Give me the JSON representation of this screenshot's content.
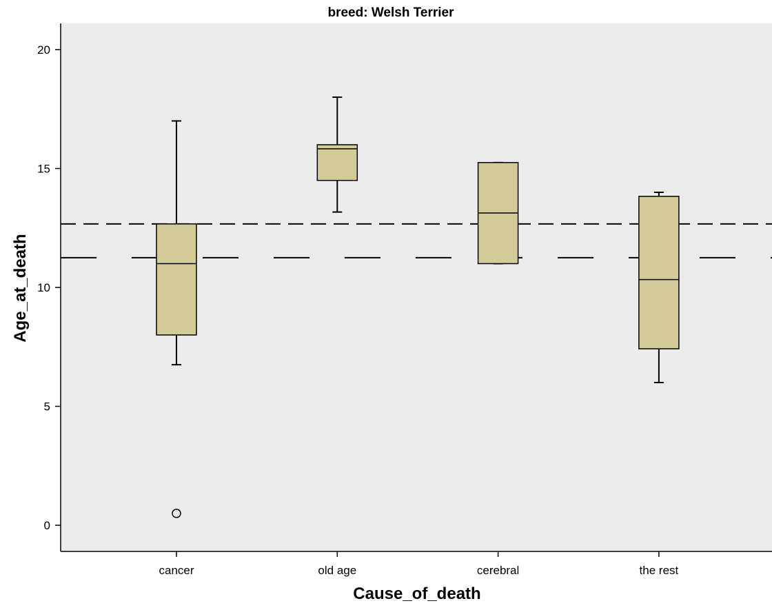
{
  "chart_data": {
    "type": "boxplot",
    "title": "breed: Welsh Terrier",
    "xlabel": "Cause_of_death",
    "ylabel": "Age_at_death",
    "ylim": [
      -1.1,
      21.1
    ],
    "yticks": [
      0,
      5,
      10,
      15,
      20
    ],
    "categories": [
      "cancer",
      "old age",
      "cerebral",
      "the rest"
    ],
    "boxes": [
      {
        "category": "cancer",
        "whisker_low": 6.75,
        "q1": 8.0,
        "median": 11.0,
        "q3": 12.67,
        "whisker_high": 17.0,
        "outliers": [
          0.5
        ]
      },
      {
        "category": "old age",
        "whisker_low": 13.17,
        "q1": 14.5,
        "median": 15.83,
        "q3": 16.0,
        "whisker_high": 18.0,
        "outliers": []
      },
      {
        "category": "cerebral",
        "whisker_low": 11.0,
        "q1": 11.0,
        "median": 13.13,
        "q3": 15.25,
        "whisker_high": 15.25,
        "outliers": []
      },
      {
        "category": "the rest",
        "whisker_low": 6.0,
        "q1": 7.42,
        "median": 10.33,
        "q3": 13.83,
        "whisker_high": 14.0,
        "outliers": []
      }
    ],
    "reference_lines": [
      {
        "value": 12.67,
        "style": "dashed"
      },
      {
        "value": 11.25,
        "style": "long-dashed"
      }
    ],
    "colors": {
      "plot_background": "#ececec",
      "box_fill": "#d4cc96",
      "stroke": "#000000"
    },
    "grid": false,
    "legend": "none"
  }
}
